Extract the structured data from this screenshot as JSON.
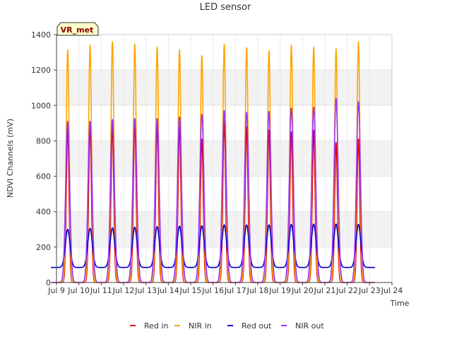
{
  "chart_data": {
    "type": "line",
    "title": "LED sensor",
    "xlabel": "Time",
    "ylabel": "NDVI Channels (mV)",
    "badge": "VR_met",
    "xlim": [
      9,
      24
    ],
    "ylim": [
      0,
      1400
    ],
    "x_ticks": [
      "Jul 9",
      "Jul 10",
      "Jul 11",
      "Jul 12",
      "Jul 13",
      "Jul 14",
      "Jul 15",
      "Jul 16",
      "Jul 17",
      "Jul 18",
      "Jul 19",
      "Jul 20",
      "Jul 21",
      "Jul 22",
      "Jul 23",
      "Jul 24"
    ],
    "y_ticks": [
      0,
      200,
      400,
      600,
      800,
      1000,
      1200,
      1400
    ],
    "grid": true,
    "legend_position": "bottom",
    "series": [
      {
        "name": "Red in",
        "color": "#dd0000",
        "peaks": [
          {
            "day": 9.5,
            "value": 870
          },
          {
            "day": 10.5,
            "value": 880
          },
          {
            "day": 11.5,
            "value": 880
          },
          {
            "day": 12.5,
            "value": 900
          },
          {
            "day": 13.5,
            "value": 890
          },
          {
            "day": 14.5,
            "value": 880
          },
          {
            "day": 15.5,
            "value": 810
          },
          {
            "day": 16.5,
            "value": 910
          },
          {
            "day": 17.5,
            "value": 880
          },
          {
            "day": 18.5,
            "value": 860
          },
          {
            "day": 19.5,
            "value": 850
          },
          {
            "day": 20.5,
            "value": 860
          },
          {
            "day": 21.5,
            "value": 790
          },
          {
            "day": 22.5,
            "value": 810
          }
        ],
        "night_value": 0
      },
      {
        "name": "NIR in",
        "color": "#ffa500",
        "peaks": [
          {
            "day": 9.5,
            "value": 1315
          },
          {
            "day": 10.5,
            "value": 1340
          },
          {
            "day": 11.5,
            "value": 1360
          },
          {
            "day": 12.5,
            "value": 1345
          },
          {
            "day": 13.5,
            "value": 1330
          },
          {
            "day": 14.5,
            "value": 1315
          },
          {
            "day": 15.5,
            "value": 1280
          },
          {
            "day": 16.5,
            "value": 1345
          },
          {
            "day": 17.5,
            "value": 1325
          },
          {
            "day": 18.5,
            "value": 1310
          },
          {
            "day": 19.5,
            "value": 1340
          },
          {
            "day": 20.5,
            "value": 1330
          },
          {
            "day": 21.5,
            "value": 1320
          },
          {
            "day": 22.5,
            "value": 1360
          }
        ],
        "night_value": 0
      },
      {
        "name": "Red out",
        "color": "#0000cc",
        "peaks": [
          {
            "day": 9.5,
            "value": 300
          },
          {
            "day": 10.5,
            "value": 305
          },
          {
            "day": 11.5,
            "value": 308
          },
          {
            "day": 12.5,
            "value": 312
          },
          {
            "day": 13.5,
            "value": 315
          },
          {
            "day": 14.5,
            "value": 318
          },
          {
            "day": 15.5,
            "value": 320
          },
          {
            "day": 16.5,
            "value": 325
          },
          {
            "day": 17.5,
            "value": 325
          },
          {
            "day": 18.5,
            "value": 325
          },
          {
            "day": 19.5,
            "value": 328
          },
          {
            "day": 20.5,
            "value": 330
          },
          {
            "day": 21.5,
            "value": 330
          },
          {
            "day": 22.5,
            "value": 328
          }
        ],
        "night_value": 85
      },
      {
        "name": "NIR out",
        "color": "#9933ff",
        "peaks": [
          {
            "day": 9.5,
            "value": 910
          },
          {
            "day": 10.5,
            "value": 910
          },
          {
            "day": 11.5,
            "value": 920
          },
          {
            "day": 12.5,
            "value": 925
          },
          {
            "day": 13.5,
            "value": 925
          },
          {
            "day": 14.5,
            "value": 935
          },
          {
            "day": 15.5,
            "value": 950
          },
          {
            "day": 16.5,
            "value": 970
          },
          {
            "day": 17.5,
            "value": 960
          },
          {
            "day": 18.5,
            "value": 965
          },
          {
            "day": 19.5,
            "value": 985
          },
          {
            "day": 20.5,
            "value": 990
          },
          {
            "day": 21.5,
            "value": 1040
          },
          {
            "day": 22.5,
            "value": 1020
          }
        ],
        "night_value": 0
      }
    ]
  }
}
